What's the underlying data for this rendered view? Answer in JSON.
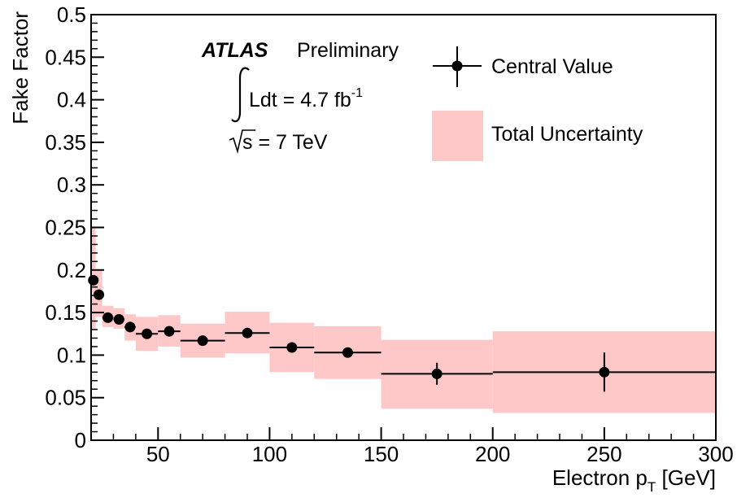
{
  "chart_data": {
    "type": "scatter",
    "xlabel": "Electron p",
    "xlabel_sub": "T",
    "xlabel_unit": " [GeV]",
    "ylabel": "Fake Factor",
    "xlim": [
      20,
      300
    ],
    "ylim": [
      0,
      0.5
    ],
    "x_ticks": [
      50,
      100,
      150,
      200,
      250,
      300
    ],
    "y_ticks": [
      0,
      0.05,
      0.1,
      0.15,
      0.2,
      0.25,
      0.3,
      0.35,
      0.4,
      0.45,
      0.5
    ],
    "x_tick_labels": [
      "50",
      "100",
      "150",
      "200",
      "250",
      "300"
    ],
    "y_tick_labels": [
      "0",
      "0.05",
      "0.1",
      "0.15",
      "0.2",
      "0.25",
      "0.3",
      "0.35",
      "0.4",
      "0.45",
      "0.5"
    ],
    "grid": false,
    "legend_position": "top-right",
    "annotations": {
      "experiment": "ATLAS",
      "status": "Preliminary",
      "lumi_prefix": "Ldt = 4.7 fb",
      "lumi_sup": "-1",
      "energy": "s = 7 TeV"
    },
    "series": [
      {
        "name": "Central Value",
        "color": "#000000",
        "points": [
          {
            "x": 21,
            "xlo": 20,
            "xhi": 22,
            "y": 0.188,
            "ylo": 0.183,
            "yhi": 0.193
          },
          {
            "x": 23.5,
            "xlo": 22,
            "xhi": 25,
            "y": 0.171,
            "ylo": 0.167,
            "yhi": 0.175
          },
          {
            "x": 27.5,
            "xlo": 25,
            "xhi": 30,
            "y": 0.144,
            "ylo": 0.141,
            "yhi": 0.147
          },
          {
            "x": 32.5,
            "xlo": 30,
            "xhi": 35,
            "y": 0.142,
            "ylo": 0.139,
            "yhi": 0.145
          },
          {
            "x": 37.5,
            "xlo": 35,
            "xhi": 40,
            "y": 0.133,
            "ylo": 0.13,
            "yhi": 0.136
          },
          {
            "x": 45,
            "xlo": 40,
            "xhi": 50,
            "y": 0.125,
            "ylo": 0.122,
            "yhi": 0.128
          },
          {
            "x": 55,
            "xlo": 50,
            "xhi": 60,
            "y": 0.128,
            "ylo": 0.125,
            "yhi": 0.131
          },
          {
            "x": 70,
            "xlo": 60,
            "xhi": 80,
            "y": 0.117,
            "ylo": 0.114,
            "yhi": 0.12
          },
          {
            "x": 90,
            "xlo": 80,
            "xhi": 100,
            "y": 0.126,
            "ylo": 0.123,
            "yhi": 0.129
          },
          {
            "x": 110,
            "xlo": 100,
            "xhi": 120,
            "y": 0.109,
            "ylo": 0.106,
            "yhi": 0.112
          },
          {
            "x": 135,
            "xlo": 120,
            "xhi": 150,
            "y": 0.103,
            "ylo": 0.097,
            "yhi": 0.109
          },
          {
            "x": 175,
            "xlo": 150,
            "xhi": 200,
            "y": 0.078,
            "ylo": 0.065,
            "yhi": 0.091
          },
          {
            "x": 250,
            "xlo": 200,
            "xhi": 300,
            "y": 0.08,
            "ylo": 0.057,
            "yhi": 0.103
          }
        ]
      },
      {
        "name": "Total Uncertainty",
        "color": "#ffc8c8",
        "bands": [
          {
            "xlo": 20,
            "xhi": 22,
            "ylo": 0.13,
            "yhi": 0.25
          },
          {
            "xlo": 22,
            "xhi": 25,
            "ylo": 0.145,
            "yhi": 0.2
          },
          {
            "xlo": 25,
            "xhi": 30,
            "ylo": 0.133,
            "yhi": 0.158
          },
          {
            "xlo": 30,
            "xhi": 35,
            "ylo": 0.131,
            "yhi": 0.155
          },
          {
            "xlo": 35,
            "xhi": 40,
            "ylo": 0.117,
            "yhi": 0.148
          },
          {
            "xlo": 40,
            "xhi": 50,
            "ylo": 0.105,
            "yhi": 0.145
          },
          {
            "xlo": 50,
            "xhi": 60,
            "ylo": 0.11,
            "yhi": 0.147
          },
          {
            "xlo": 60,
            "xhi": 80,
            "ylo": 0.097,
            "yhi": 0.137
          },
          {
            "xlo": 80,
            "xhi": 100,
            "ylo": 0.102,
            "yhi": 0.151
          },
          {
            "xlo": 100,
            "xhi": 120,
            "ylo": 0.08,
            "yhi": 0.138
          },
          {
            "xlo": 120,
            "xhi": 150,
            "ylo": 0.072,
            "yhi": 0.134
          },
          {
            "xlo": 150,
            "xhi": 200,
            "ylo": 0.037,
            "yhi": 0.118
          },
          {
            "xlo": 200,
            "xhi": 300,
            "ylo": 0.032,
            "yhi": 0.128
          }
        ]
      }
    ]
  }
}
